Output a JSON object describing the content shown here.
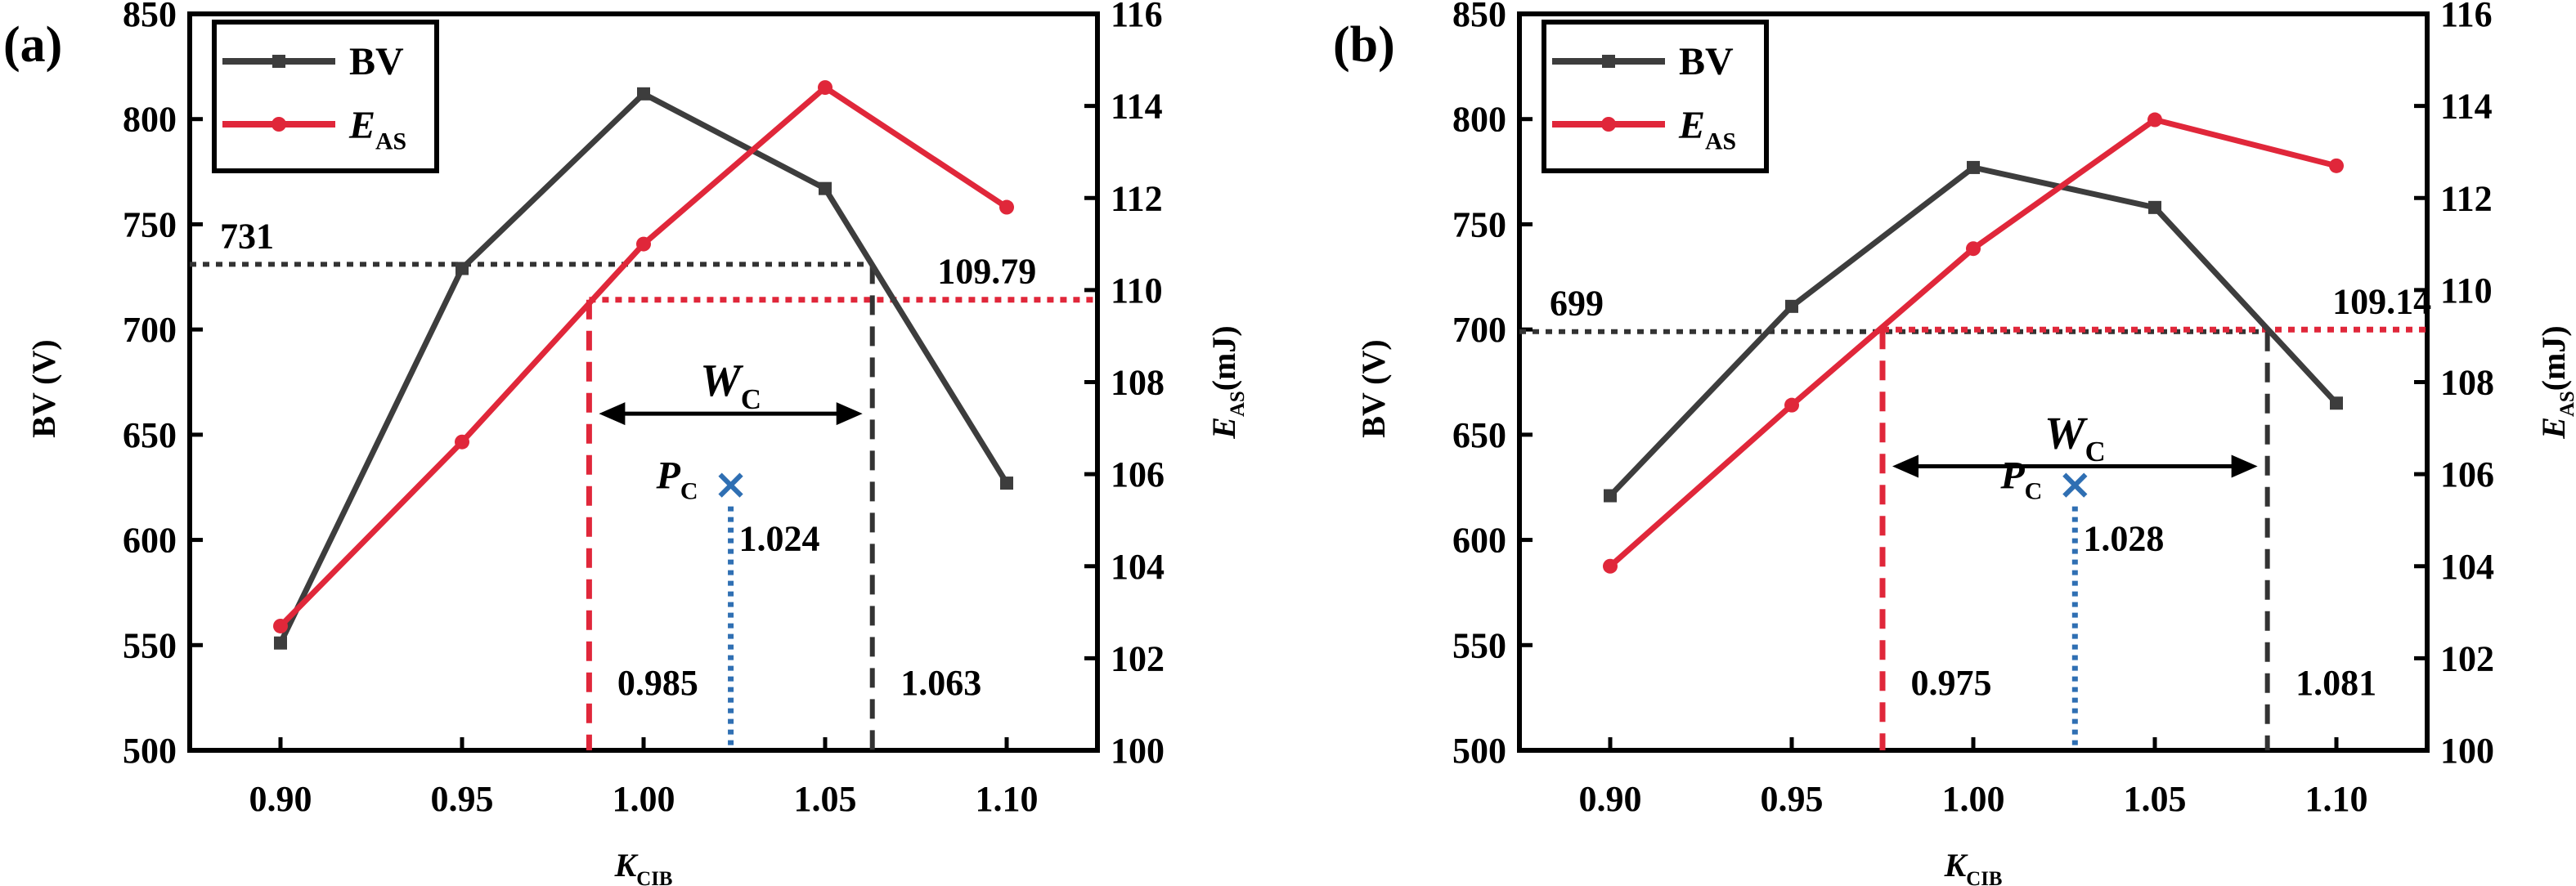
{
  "figure": {
    "background": "#ffffff"
  },
  "chart_data": [
    {
      "panel_label": "(a)",
      "type": "line",
      "x": [
        0.9,
        0.95,
        1.0,
        1.05,
        1.1
      ],
      "xlim": [
        0.875,
        1.125
      ],
      "ylim_left": [
        500,
        850
      ],
      "ylim_right": [
        100,
        116
      ],
      "xticks": [
        "0.90",
        "0.95",
        "1.00",
        "1.05",
        "1.10"
      ],
      "yticks_left": [
        "500",
        "550",
        "600",
        "650",
        "700",
        "750",
        "800",
        "850"
      ],
      "yticks_right": [
        "100",
        "102",
        "104",
        "106",
        "108",
        "110",
        "112",
        "114",
        "116"
      ],
      "xlabel": {
        "main": "K",
        "sub": "CIB"
      },
      "ylabel_left": "BV (V)",
      "ylabel_right": {
        "main": "E",
        "sub": "AS",
        "suffix": "(mJ)"
      },
      "series": [
        {
          "name": "BV",
          "axis": "left",
          "marker": "square",
          "color": "#3d3d3d",
          "values": [
            551,
            729,
            812,
            767,
            627
          ]
        },
        {
          "name": {
            "main": "E",
            "sub": "AS"
          },
          "axis": "right",
          "marker": "circle",
          "color": "#e0273a",
          "values": [
            102.7,
            106.7,
            111.0,
            114.4,
            111.8
          ]
        }
      ],
      "annotations": {
        "bv_threshold": {
          "value": 731,
          "label": "731",
          "x_end": 1.063
        },
        "eas_threshold": {
          "value": 109.79,
          "label": "109.79",
          "x_start": 0.985
        },
        "x_low": {
          "value": 0.985,
          "label": "0.985"
        },
        "x_high": {
          "value": 1.063,
          "label": "1.063"
        },
        "pc": {
          "x": 1.024,
          "bv": 626,
          "label_main": "P",
          "label_sub": "C",
          "value_label": "1.024"
        },
        "wc": {
          "main": "W",
          "sub": "C"
        }
      }
    },
    {
      "panel_label": "(b)",
      "type": "line",
      "x": [
        0.9,
        0.95,
        1.0,
        1.05,
        1.1
      ],
      "xlim": [
        0.875,
        1.125
      ],
      "ylim_left": [
        500,
        850
      ],
      "ylim_right": [
        100,
        116
      ],
      "xticks": [
        "0.90",
        "0.95",
        "1.00",
        "1.05",
        "1.10"
      ],
      "yticks_left": [
        "500",
        "550",
        "600",
        "650",
        "700",
        "750",
        "800",
        "850"
      ],
      "yticks_right": [
        "100",
        "102",
        "104",
        "106",
        "108",
        "110",
        "112",
        "114",
        "116"
      ],
      "xlabel": {
        "main": "K",
        "sub": "CIB"
      },
      "ylabel_left": "BV (V)",
      "ylabel_right": {
        "main": "E",
        "sub": "AS",
        "suffix": "(mJ)"
      },
      "series": [
        {
          "name": "BV",
          "axis": "left",
          "marker": "square",
          "color": "#3d3d3d",
          "values": [
            621,
            711,
            777,
            758,
            665
          ]
        },
        {
          "name": {
            "main": "E",
            "sub": "AS"
          },
          "axis": "right",
          "marker": "circle",
          "color": "#e0273a",
          "values": [
            104.0,
            107.5,
            110.9,
            113.7,
            112.7
          ]
        }
      ],
      "annotations": {
        "bv_threshold": {
          "value": 699,
          "label": "699",
          "x_end": 1.081
        },
        "eas_threshold": {
          "value": 109.14,
          "label": "109.14",
          "x_start": 0.975
        },
        "x_low": {
          "value": 0.975,
          "label": "0.975"
        },
        "x_high": {
          "value": 1.081,
          "label": "1.081"
        },
        "pc": {
          "x": 1.028,
          "bv": 626,
          "label_main": "P",
          "label_sub": "C",
          "value_label": "1.028"
        },
        "wc": {
          "main": "W",
          "sub": "C"
        }
      }
    }
  ]
}
